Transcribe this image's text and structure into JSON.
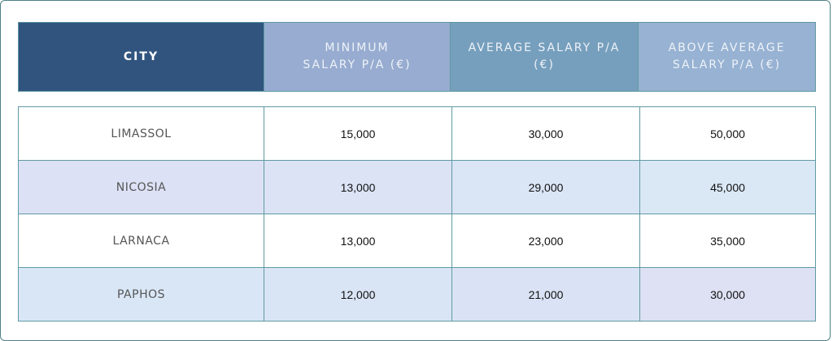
{
  "table": {
    "headers": [
      "CITY",
      "MINIMUM SALARY P/A (€)",
      "AVERAGE SALARY P/A (€)",
      "ABOVE AVERAGE SALARY P/A (€)"
    ],
    "rows": [
      {
        "city": "LIMASSOL",
        "minimum": "15,000",
        "average": "30,000",
        "above_average": "50,000"
      },
      {
        "city": "NICOSIA",
        "minimum": "13,000",
        "average": "29,000",
        "above_average": "45,000"
      },
      {
        "city": "LARNACA",
        "minimum": "13,000",
        "average": "23,000",
        "above_average": "35,000"
      },
      {
        "city": "PAPHOS",
        "minimum": "12,000",
        "average": "21,000",
        "above_average": "30,000"
      }
    ]
  },
  "colors": {
    "city_header": "#31547f",
    "min_header": "#97acd0",
    "avg_header": "#769fbd",
    "above_header": "#97b2d2",
    "border": "#5f9aa2"
  }
}
